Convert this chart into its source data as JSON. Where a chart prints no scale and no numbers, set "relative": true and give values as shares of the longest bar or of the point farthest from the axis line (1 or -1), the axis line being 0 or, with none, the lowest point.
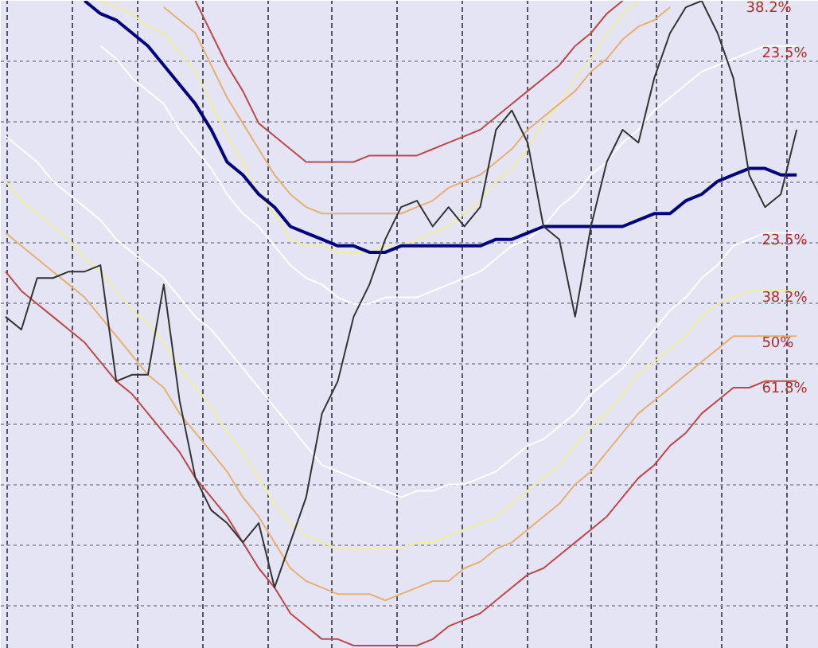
{
  "chart_data": {
    "type": "line",
    "relative": true,
    "grid": true,
    "line_style": "solid",
    "categories": [
      null,
      null,
      null,
      null,
      null,
      null,
      null,
      null,
      null,
      null,
      null,
      null,
      null,
      null,
      null,
      null,
      null,
      null,
      null,
      null,
      null,
      null,
      null,
      null,
      null,
      null,
      null,
      null,
      null,
      null,
      null,
      null,
      null,
      null,
      null,
      null,
      null,
      null,
      null,
      null,
      null,
      null,
      null,
      null,
      null,
      null,
      null,
      null,
      null,
      null,
      null,
      null
    ],
    "annotations": [
      "38.2%"
    ],
    "series": [
      {
        "color": "#ffffff",
        "name": "23.5%",
        "values": [
          null,
          null,
          null,
          null,
          null,
          null,
          0.93,
          0.91,
          0.88,
          0.86,
          0.84,
          0.8,
          0.77,
          0.74,
          0.7,
          0.67,
          0.65,
          0.62,
          0.59,
          0.57,
          0.56,
          0.54,
          0.53,
          0.53,
          0.54,
          0.54,
          0.54,
          0.55,
          0.56,
          0.57,
          0.58,
          0.6,
          0.62,
          0.63,
          0.65,
          0.68,
          0.7,
          0.73,
          0.75,
          0.78,
          0.8,
          0.83,
          0.85,
          0.87,
          0.89,
          0.9,
          0.91,
          0.92,
          0.93,
          0.93,
          0.93,
          null
        ]
      },
      {
        "color": "#ffffff",
        "name": "23.5%",
        "values": [
          0.79,
          0.77,
          0.75,
          0.72,
          0.7,
          0.68,
          0.66,
          0.63,
          0.61,
          0.59,
          0.57,
          0.54,
          0.51,
          0.49,
          0.46,
          0.43,
          0.4,
          0.37,
          0.34,
          0.31,
          0.28,
          0.27,
          0.26,
          0.25,
          0.24,
          0.23,
          0.24,
          0.24,
          0.25,
          0.25,
          0.26,
          0.27,
          0.29,
          0.31,
          0.32,
          0.34,
          0.36,
          0.39,
          0.41,
          0.43,
          0.46,
          0.49,
          0.52,
          0.54,
          0.57,
          0.59,
          0.62,
          0.63,
          0.64,
          0.64,
          0.64,
          null
        ]
      },
      {
        "color": "#f0ee9c",
        "values": [
          null,
          null,
          null,
          null,
          null,
          null,
          1.0,
          0.99,
          0.98,
          0.96,
          0.95,
          0.92,
          0.89,
          0.84,
          0.79,
          0.75,
          0.7,
          0.67,
          0.63,
          0.62,
          0.62,
          0.61,
          0.61,
          0.61,
          0.62,
          0.62,
          0.63,
          0.64,
          0.65,
          0.67,
          0.69,
          0.72,
          0.74,
          0.77,
          0.81,
          0.84,
          0.88,
          0.91,
          0.95,
          0.98,
          1.0,
          null,
          null,
          null,
          null,
          null,
          null,
          null,
          null,
          null,
          null,
          null
        ]
      },
      {
        "color": "#e8b070",
        "values": [
          null,
          null,
          null,
          null,
          null,
          null,
          null,
          null,
          null,
          null,
          0.99,
          0.97,
          0.95,
          0.9,
          0.85,
          0.81,
          0.77,
          0.73,
          0.7,
          0.68,
          0.67,
          0.67,
          0.67,
          0.67,
          0.67,
          0.67,
          0.68,
          0.69,
          0.71,
          0.72,
          0.73,
          0.75,
          0.77,
          0.8,
          0.82,
          0.84,
          0.86,
          0.89,
          0.91,
          0.94,
          0.96,
          0.97,
          0.99,
          null,
          null,
          null,
          null,
          null,
          null,
          null,
          null,
          null
        ]
      },
      {
        "color": "#c04848",
        "values": [
          null,
          null,
          null,
          null,
          null,
          null,
          null,
          null,
          null,
          null,
          null,
          null,
          1.0,
          0.95,
          0.9,
          0.86,
          0.81,
          0.79,
          0.77,
          0.75,
          0.75,
          0.75,
          0.75,
          0.76,
          0.76,
          0.76,
          0.76,
          0.77,
          0.78,
          0.79,
          0.8,
          0.82,
          0.84,
          0.86,
          0.88,
          0.9,
          0.93,
          0.95,
          0.98,
          1.0,
          null,
          null,
          null,
          null,
          null,
          null,
          null,
          null,
          null,
          null,
          null,
          null
        ]
      },
      {
        "color": "#f0ee9c",
        "name": "38.2%",
        "values": [
          0.72,
          0.69,
          0.67,
          0.65,
          0.63,
          0.6,
          0.58,
          0.55,
          0.52,
          0.5,
          0.47,
          0.43,
          0.4,
          0.37,
          0.33,
          0.3,
          0.26,
          0.22,
          0.19,
          0.17,
          0.16,
          0.15,
          0.15,
          0.15,
          0.15,
          0.15,
          0.16,
          0.16,
          0.17,
          0.18,
          0.19,
          0.2,
          0.22,
          0.24,
          0.26,
          0.28,
          0.31,
          0.34,
          0.36,
          0.39,
          0.42,
          0.44,
          0.46,
          0.48,
          0.51,
          0.53,
          0.54,
          0.55,
          0.55,
          0.55,
          0.55,
          null
        ]
      },
      {
        "color": "#e8b070",
        "name": "50%",
        "values": [
          0.64,
          0.62,
          0.6,
          0.58,
          0.56,
          0.54,
          0.51,
          0.48,
          0.45,
          0.42,
          0.4,
          0.36,
          0.33,
          0.3,
          0.27,
          0.23,
          0.2,
          0.16,
          0.12,
          0.1,
          0.09,
          0.08,
          0.08,
          0.08,
          0.07,
          0.08,
          0.09,
          0.1,
          0.1,
          0.12,
          0.13,
          0.15,
          0.16,
          0.18,
          0.2,
          0.22,
          0.25,
          0.27,
          0.3,
          0.33,
          0.36,
          0.38,
          0.4,
          0.42,
          0.44,
          0.46,
          0.48,
          0.48,
          0.48,
          0.48,
          0.48,
          null
        ]
      },
      {
        "color": "#c04848",
        "name": "61.8%",
        "values": [
          0.58,
          0.55,
          0.53,
          0.51,
          0.49,
          0.47,
          0.44,
          0.41,
          0.39,
          0.36,
          0.33,
          0.3,
          0.26,
          0.23,
          0.2,
          0.16,
          0.12,
          0.09,
          0.05,
          0.03,
          0.01,
          0.01,
          0.0,
          0.0,
          0.0,
          0.0,
          0.0,
          0.01,
          0.03,
          0.04,
          0.05,
          0.07,
          0.09,
          0.11,
          0.12,
          0.14,
          0.16,
          0.18,
          0.2,
          0.23,
          0.26,
          0.28,
          0.31,
          0.33,
          0.36,
          0.38,
          0.4,
          0.4,
          0.41,
          0.41,
          0.41,
          null
        ]
      },
      {
        "color": "#000080",
        "values": [
          null,
          null,
          null,
          null,
          null,
          1.0,
          0.98,
          0.97,
          0.95,
          0.93,
          0.9,
          0.87,
          0.84,
          0.8,
          0.75,
          0.73,
          0.7,
          0.68,
          0.65,
          0.64,
          0.63,
          0.62,
          0.62,
          0.61,
          0.61,
          0.62,
          0.62,
          0.62,
          0.62,
          0.62,
          0.62,
          0.63,
          0.63,
          0.64,
          0.65,
          0.65,
          0.65,
          0.65,
          0.65,
          0.65,
          0.66,
          0.67,
          0.67,
          0.69,
          0.7,
          0.72,
          0.73,
          0.74,
          0.74,
          0.73,
          0.73,
          null
        ]
      },
      {
        "color": "#333333",
        "values": [
          0.51,
          0.49,
          0.57,
          0.57,
          0.58,
          0.58,
          0.59,
          0.41,
          0.42,
          0.42,
          0.56,
          0.38,
          0.26,
          0.21,
          0.19,
          0.16,
          0.19,
          0.09,
          0.16,
          0.23,
          0.36,
          0.41,
          0.51,
          0.56,
          0.63,
          0.68,
          0.69,
          0.65,
          0.68,
          0.65,
          0.68,
          0.8,
          0.83,
          0.78,
          0.65,
          0.63,
          0.51,
          0.65,
          0.75,
          0.8,
          0.78,
          0.88,
          0.95,
          0.99,
          1.0,
          0.95,
          0.88,
          0.73,
          0.68,
          0.7,
          0.8,
          null
        ]
      }
    ]
  }
}
